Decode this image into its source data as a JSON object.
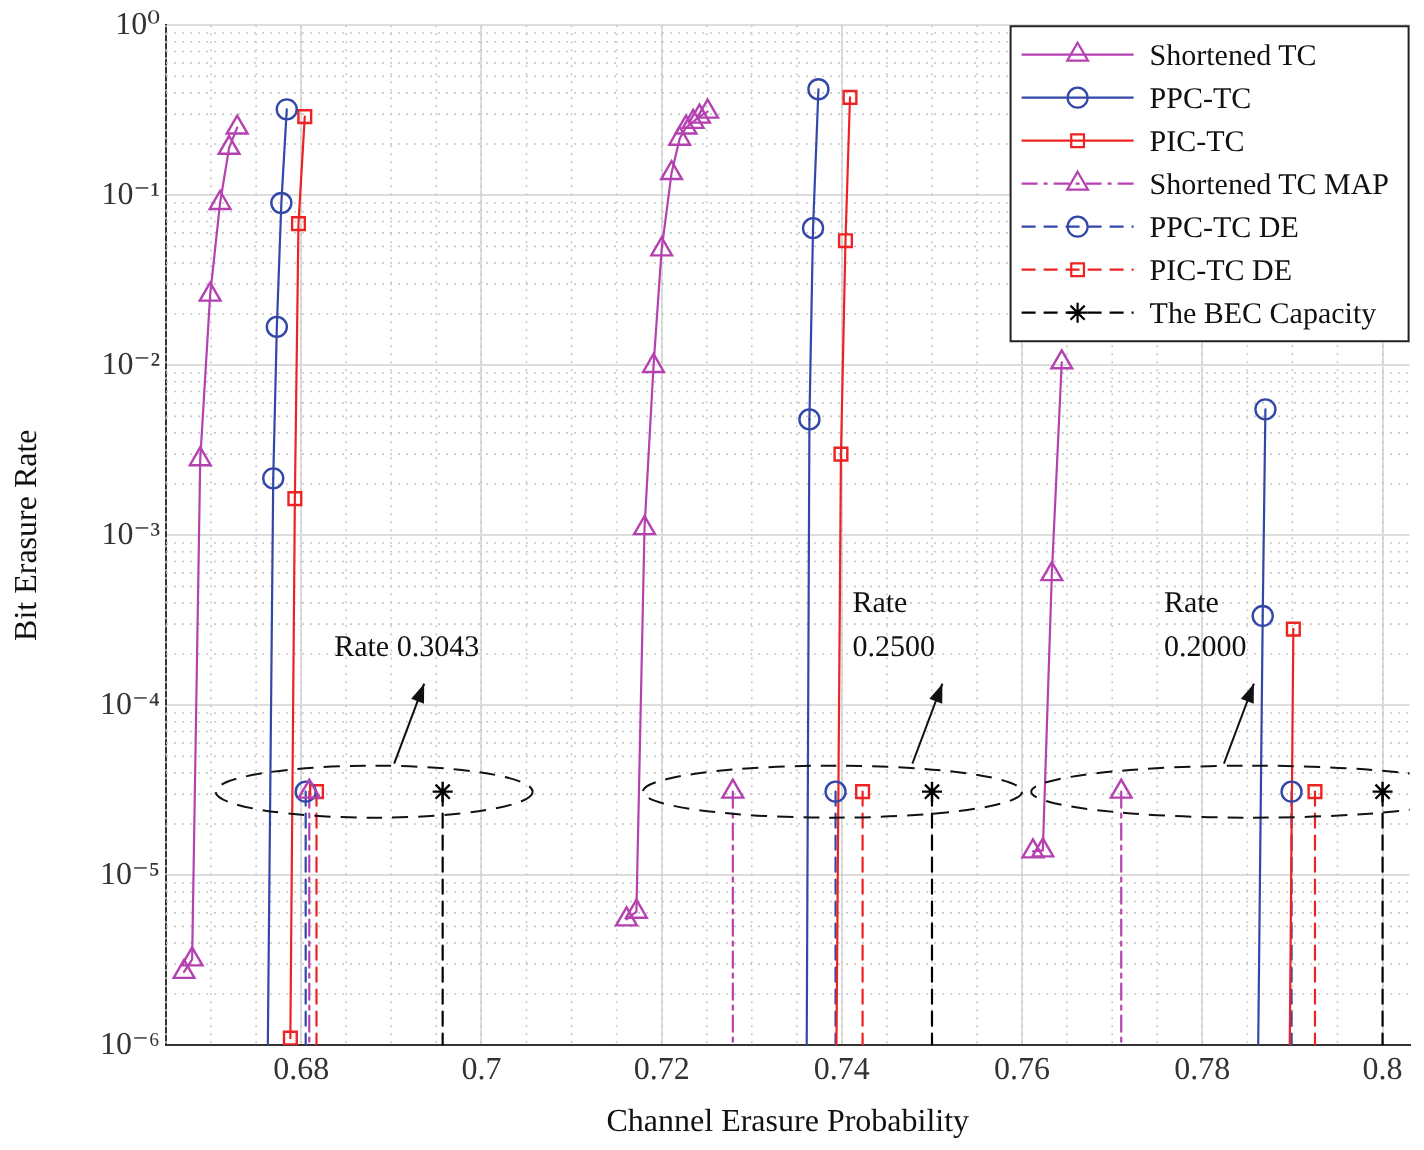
{
  "chart_data": {
    "type": "line",
    "xlabel": "Channel Erasure Probability",
    "ylabel": "Bit Erasure Rate",
    "xlim": [
      0.665,
      0.803
    ],
    "xticks": [
      0.68,
      {
        "value": 0.7,
        "label": "0.7"
      },
      0.72,
      0.74,
      0.76,
      0.78,
      {
        "value": 0.8,
        "label": "0.8"
      }
    ],
    "ylim": [
      1e-06,
      1
    ],
    "yticks": [
      {
        "value": 1e-06,
        "label": "10⁻⁶"
      },
      {
        "value": 1e-05,
        "label": "10⁻⁵"
      },
      {
        "value": 0.0001,
        "label": "10⁻⁴"
      },
      {
        "value": 0.001,
        "label": "10⁻³"
      },
      {
        "value": 0.01,
        "label": "10⁻²"
      },
      {
        "value": 0.1,
        "label": "10⁻¹"
      },
      {
        "value": 1,
        "label": "10⁰"
      }
    ],
    "log": "y",
    "grid": true,
    "legend": "top right",
    "series": [
      {
        "name": "Shortened TC",
        "color": "#b540b0",
        "marker": "triangle",
        "line_style": "solid",
        "x": [
          0.667,
          0.6679,
          0.6688,
          0.6699,
          0.671,
          0.672,
          0.6729,
          0.7,
          0.7161,
          0.7172,
          0.7181,
          0.7191,
          0.72,
          0.7211,
          0.722,
          0.7227,
          0.7235,
          0.7242,
          0.7251,
          0.75,
          0.7612,
          0.7623,
          0.7633,
          0.7644
        ],
        "values": [
          2.7e-06,
          3.2e-06,
          0.0028,
          0.026,
          0.09,
          0.19,
          0.25,
          null,
          5.5e-06,
          6.1e-06,
          0.0011,
          0.0099,
          0.048,
          0.135,
          0.215,
          0.25,
          0.27,
          0.29,
          0.31,
          null,
          1.38e-05,
          1.4e-05,
          0.00059,
          0.0104
        ]
      },
      {
        "name": "PPC-TC",
        "color": "#3347a8",
        "marker": "circle",
        "line_style": "solid",
        "x": [
          0.6769,
          0.6773,
          0.6778,
          0.6784,
          0.7,
          0.7364,
          0.7368,
          0.7374,
          0.75,
          0.7867,
          0.787
        ],
        "values": [
          0.00216,
          0.0168,
          0.09,
          0.32,
          null,
          0.0048,
          0.064,
          0.42,
          null,
          0.000335,
          0.0055
        ]
      },
      {
        "name": "PIC-TC",
        "color": "#ee2222",
        "marker": "square",
        "line_style": "solid",
        "x": [
          0.6788,
          0.6793,
          0.6797,
          0.6804,
          0.7,
          0.7399,
          0.7404,
          0.7409,
          0.75,
          0.7901
        ],
        "values": [
          1.1e-06,
          0.00164,
          0.068,
          0.29,
          null,
          0.003,
          0.054,
          0.376,
          null,
          0.00028
        ]
      },
      {
        "name": "Shortened TC MAP",
        "type": "scatter",
        "color": "#b540b0",
        "marker": "triangle",
        "line_style": "dashdot",
        "x": [
          0.6809,
          0.7279,
          0.771
        ],
        "values": [
          3.1e-05,
          3.1e-05,
          3.1e-05
        ]
      },
      {
        "name": "PPC-TC DE",
        "type": "scatter",
        "color": "#3347a8",
        "marker": "circle",
        "line_style": "dashed",
        "x": [
          0.6805,
          0.7393,
          0.7899
        ],
        "values": [
          3.1e-05,
          3.1e-05,
          3.1e-05
        ]
      },
      {
        "name": "PIC-TC DE",
        "type": "scatter",
        "color": "#ee2222",
        "marker": "square",
        "line_style": "dashed",
        "x": [
          0.6817,
          0.7423,
          0.7925
        ],
        "values": [
          3.1e-05,
          3.1e-05,
          3.1e-05
        ]
      },
      {
        "name": "The BEC Capacity",
        "type": "scatter",
        "color": "#000000",
        "marker": "cross",
        "line_style": "dashed",
        "x": [
          0.6957,
          0.75,
          0.8
        ],
        "values": [
          3.1e-05,
          3.1e-05,
          3.1e-05
        ]
      },
      {
        "type": "line",
        "color": "#3347a8",
        "marker": "none",
        "line_style": "solid",
        "x": [
          0.6769,
          0.6763,
          0.7,
          0.7364,
          0.7361,
          0.75,
          0.7867,
          0.7862
        ],
        "values": [
          0.00216,
          1e-06,
          null,
          0.0048,
          1e-06,
          null,
          0.000335,
          1e-06
        ]
      },
      {
        "type": "line",
        "color": "#ee2222",
        "marker": "none",
        "line_style": "solid",
        "x": [
          0.7399,
          0.7394,
          0.75,
          0.7901,
          0.7897
        ],
        "values": [
          0.003,
          1e-06,
          null,
          0.00028,
          1e-06
        ]
      },
      {
        "type": "line",
        "color": "#b540b0",
        "marker": "none",
        "line_style": "dashdot",
        "x": [
          0.6809,
          0.6809,
          0.7,
          0.7279,
          0.7279,
          0.75,
          0.771,
          0.771
        ],
        "values": [
          3.1e-05,
          1e-06,
          null,
          3.1e-05,
          1e-06,
          null,
          3.1e-05,
          1e-06
        ]
      },
      {
        "type": "line",
        "color": "#3347a8",
        "marker": "none",
        "line_style": "dashed",
        "x": [
          0.6805,
          0.6805,
          0.7,
          0.7393,
          0.7393,
          0.75,
          0.7899,
          0.7899
        ],
        "values": [
          3.1e-05,
          1e-06,
          null,
          3.1e-05,
          1e-06,
          null,
          3.1e-05,
          1e-06
        ]
      },
      {
        "type": "line",
        "color": "#ee2222",
        "marker": "none",
        "line_style": "dashed",
        "x": [
          0.6817,
          0.6817,
          0.7,
          0.7423,
          0.7423,
          0.75,
          0.7925,
          0.7925
        ],
        "values": [
          3.1e-05,
          1e-06,
          null,
          3.1e-05,
          1e-06,
          null,
          3.1e-05,
          1e-06
        ]
      },
      {
        "type": "line",
        "color": "#000000",
        "marker": "none",
        "line_style": "dashed",
        "x": [
          0.6957,
          0.6957,
          0.7,
          0.75,
          0.75,
          0.76,
          0.8,
          0.8
        ],
        "values": [
          3.1e-05,
          1e-06,
          null,
          3.1e-05,
          1e-06,
          null,
          3.1e-05,
          1e-06
        ]
      }
    ],
    "annotations": [
      "Rate 0.3043",
      "Rate\n0.2500",
      "Rate\n0.2000"
    ]
  }
}
